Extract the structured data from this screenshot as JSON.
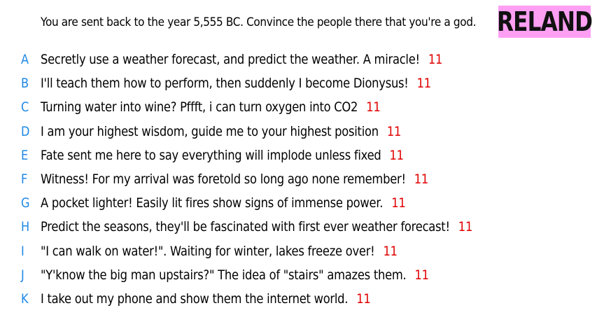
{
  "prompt": "You are sent back to the year 5,555 BC. Convince the people there that you're a god.",
  "badge": "RELAND",
  "colors": {
    "badge_bg": "#ff9ff3",
    "letter": "#1e88e5",
    "score": "#e00000"
  },
  "answers": [
    {
      "letter": "A",
      "text": "Secretly use a weather forecast, and predict the weather. A miracle!",
      "score": "11"
    },
    {
      "letter": "B",
      "text": "I'll teach them how to perform, then suddenly I become Dionysus!",
      "score": "11"
    },
    {
      "letter": "C",
      "text": "Turning water into wine? Pffft, i can turn oxygen into CO2",
      "score": "11"
    },
    {
      "letter": "D",
      "text": "I am your highest wisdom,  guide me to your highest position",
      "score": "11"
    },
    {
      "letter": "E",
      "text": "Fate sent me here to say everything will implode unless fixed",
      "score": "11"
    },
    {
      "letter": "F",
      "text": "Witness! For my arrival was foretold so long ago none remember!",
      "score": "11"
    },
    {
      "letter": "G",
      "text": "A pocket lighter! Easily lit fires show signs of immense power.",
      "score": "11"
    },
    {
      "letter": "H",
      "text": "Predict the seasons, they'll be fascinated with first ever weather forecast!",
      "score": "11"
    },
    {
      "letter": "I",
      "text": "\"I can walk on water!\". Waiting for winter, lakes freeze over!",
      "score": "11"
    },
    {
      "letter": "J",
      "text": "\"Y'know the big man upstairs?\" The idea of \"stairs\" amazes them.",
      "score": "11"
    },
    {
      "letter": "K",
      "text": "I take out my phone and show them the internet world.",
      "score": "11"
    }
  ]
}
